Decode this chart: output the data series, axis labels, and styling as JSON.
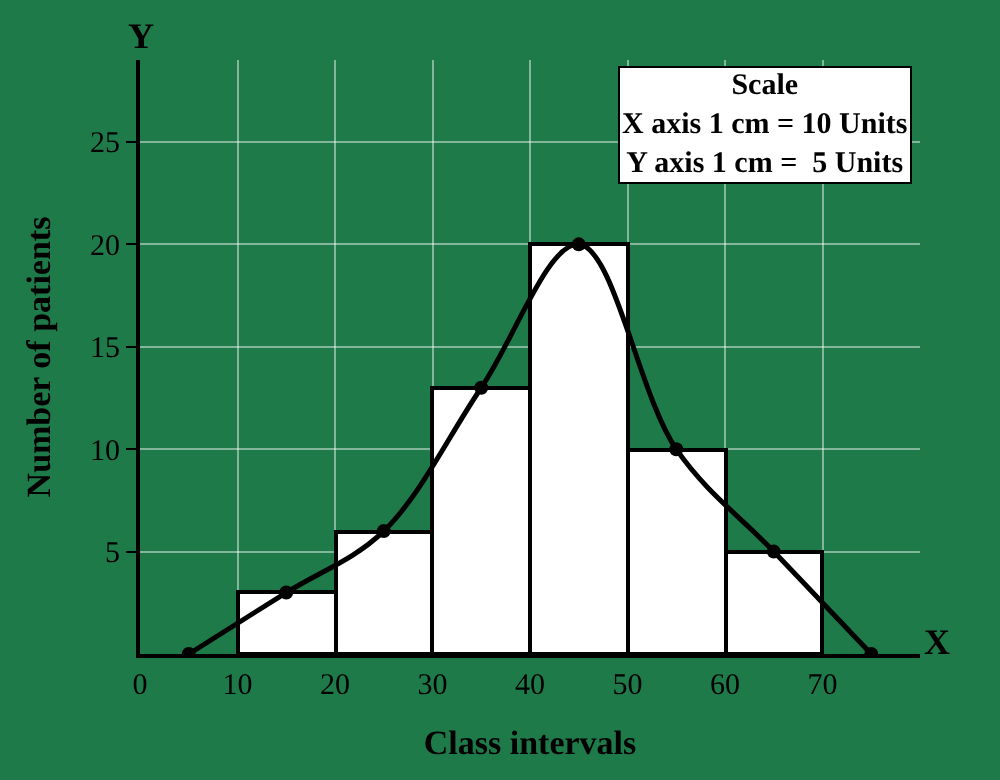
{
  "chart_data": {
    "type": "histogram",
    "xlabel": "Class intervals",
    "ylabel": "Number of patients",
    "bins": [
      10,
      20,
      30,
      40,
      50,
      60,
      70
    ],
    "values": [
      3,
      6,
      13,
      20,
      10,
      5
    ],
    "color": "#ffffff",
    "series": [
      {
        "type": "line",
        "color": "#000000",
        "x": [
          5,
          15,
          25,
          35,
          45,
          55,
          65,
          75
        ],
        "values": [
          0,
          3,
          6,
          13,
          20,
          10,
          5,
          0
        ],
        "marker": "circle"
      }
    ],
    "xlim": [
      0,
      80
    ],
    "xticks": [
      0,
      10,
      20,
      30,
      40,
      50,
      60,
      70
    ],
    "ylim": [
      0,
      29
    ],
    "yticks": [
      5,
      10,
      15,
      20,
      25
    ],
    "grid": true,
    "annotations": [
      "X",
      "Y",
      "Scale\nX axis 1 cm = 10 Units\nY axis 1 cm =  5 Units"
    ]
  }
}
